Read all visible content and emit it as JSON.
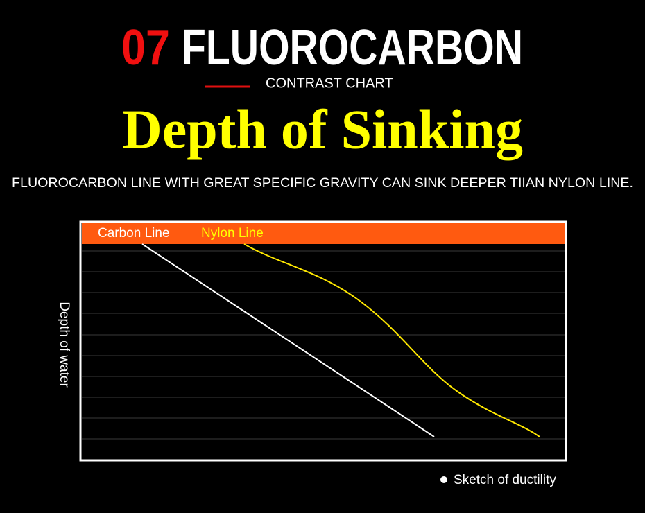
{
  "header": {
    "number": "07",
    "title": "FLUOROCARBON",
    "subtitle": "CONTRAST CHART"
  },
  "heading": "Depth of Sinking",
  "description": "FLUOROCARBON LINE WITH GREAT SPECIFIC GRAVITY CAN SINK DEEPER TIIAN NYLON LINE.",
  "chart": {
    "legend": [
      "Carbon Line",
      "Nylon Line"
    ],
    "y_label": "Depth of water",
    "note": "Sketch of ductility"
  }
}
